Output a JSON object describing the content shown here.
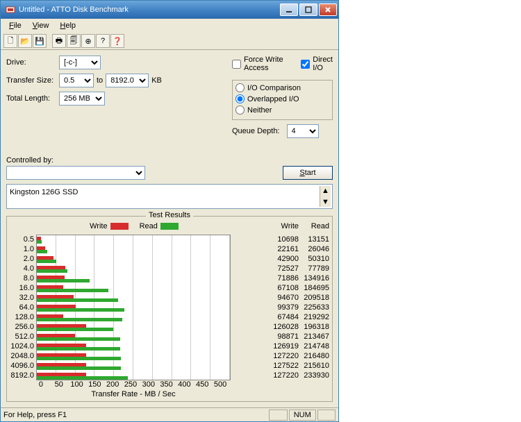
{
  "window": {
    "title": "Untitled - ATTO Disk Benchmark"
  },
  "menu": [
    "File",
    "View",
    "Help"
  ],
  "toolbar_icons": [
    "new",
    "open",
    "save",
    "sep",
    "print",
    "copy",
    "add",
    "help",
    "whatsthis"
  ],
  "fields": {
    "drive_label": "Drive:",
    "drive_value": "[-c-]",
    "transfer_label": "Transfer Size:",
    "transfer_from": "0.5",
    "transfer_to_label": "to",
    "transfer_to": "8192.0",
    "transfer_unit": "KB",
    "length_label": "Total Length:",
    "length_value": "256 MB",
    "force_write": "Force Write Access",
    "direct_io": "Direct I/O",
    "io_compare": "I/O Comparison",
    "overlapped": "Overlapped I/O",
    "neither": "Neither",
    "queue_label": "Queue Depth:",
    "queue_value": "4",
    "controlled": "Controlled by:",
    "controlled_value": "",
    "start": "Start",
    "description": "Kingston 126G SSD"
  },
  "results": {
    "title": "Test Results",
    "write_label": "Write",
    "read_label": "Read",
    "xlabel": "Transfer Rate - MB / Sec",
    "xmax": 500,
    "xticks": [
      0,
      50,
      100,
      150,
      200,
      250,
      300,
      350,
      400,
      450,
      500
    ],
    "write_color": "#d82c2c",
    "read_color": "#2fa82f",
    "rows": [
      {
        "size": "0.5",
        "write": 10698,
        "read": 13151
      },
      {
        "size": "1.0",
        "write": 22161,
        "read": 26046
      },
      {
        "size": "2.0",
        "write": 42900,
        "read": 50310
      },
      {
        "size": "4.0",
        "write": 72527,
        "read": 77789
      },
      {
        "size": "8.0",
        "write": 71886,
        "read": 134916
      },
      {
        "size": "16.0",
        "write": 67108,
        "read": 184695
      },
      {
        "size": "32.0",
        "write": 94670,
        "read": 209518
      },
      {
        "size": "64.0",
        "write": 99379,
        "read": 225633
      },
      {
        "size": "128.0",
        "write": 67484,
        "read": 219292
      },
      {
        "size": "256.0",
        "write": 126028,
        "read": 196318
      },
      {
        "size": "512.0",
        "write": 98871,
        "read": 213467
      },
      {
        "size": "1024.0",
        "write": 126919,
        "read": 214748
      },
      {
        "size": "2048.0",
        "write": 127220,
        "read": 216480
      },
      {
        "size": "4096.0",
        "write": 127522,
        "read": 215610
      },
      {
        "size": "8192.0",
        "write": 127220,
        "read": 233930
      }
    ]
  },
  "status": {
    "help": "For Help, press F1",
    "num": "NUM"
  }
}
